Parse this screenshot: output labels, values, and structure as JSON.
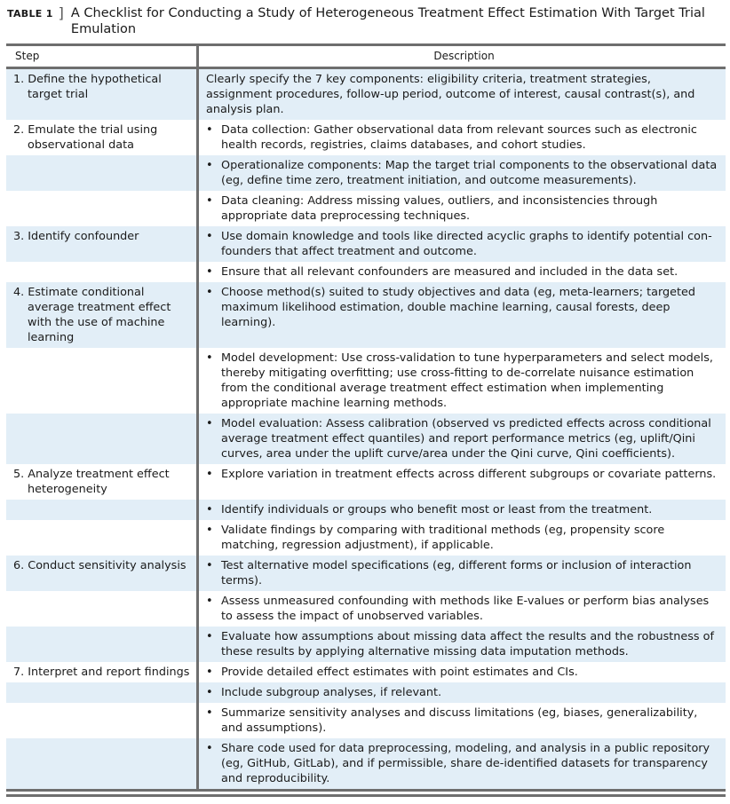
{
  "caption": {
    "label": "TABLE 1",
    "bracket": "]",
    "title": "A Checklist for Conducting a Study of Heterogeneous Treatment Effect Estimation With Target Trial Emulation"
  },
  "headers": {
    "step": "Step",
    "description": "Description"
  },
  "shade_color": "#e2eef7",
  "rows": [
    {
      "step": "1. Define the hypothetical target trial",
      "text": "Clearly specify the 7 key components: eligibility criteria, treatment strategies, assignment procedures, follow-up period, outcome of interest, causal contrast(s), and analysis plan.",
      "bullet": false
    },
    {
      "step": "2. Emulate the trial using observational data",
      "text": "Data collection: Gather observational data from relevant sources such as electronic health records, registries, claims databases, and cohort studies.",
      "bullet": true
    },
    {
      "step": "",
      "text": "Operationalize components: Map the target trial components to the observational data (eg, define time zero, treatment initiation, and outcome measurements).",
      "bullet": true
    },
    {
      "step": "",
      "text": "Data cleaning: Address missing values, outliers, and inconsistencies through appropriate data preprocessing techniques.",
      "bullet": true
    },
    {
      "step": "3. Identify confounder",
      "text": "Use domain knowledge and tools like directed acyclic graphs to identify potential con-founders that affect treatment and outcome.",
      "bullet": true
    },
    {
      "step": "",
      "text": "Ensure that all relevant confounders are measured and included in the data set.",
      "bullet": true
    },
    {
      "step": "4. Estimate conditional average treatment effect with the use of machine learning",
      "text": "Choose method(s) suited to study objectives and data (eg, meta-learners; targeted maximum likelihood estimation, double machine learning, causal forests, deep learning).",
      "bullet": true
    },
    {
      "step": "",
      "text": "Model development: Use cross-validation to tune hyperparameters and select models, thereby mitigating overfitting; use cross-fitting to de-correlate nuisance estimation from the conditional average treatment effect estimation when implementing appropriate machine learning methods.",
      "bullet": true
    },
    {
      "step": "",
      "text": "Model evaluation: Assess calibration (observed vs predicted effects across conditional average treatment effect quantiles) and report performance metrics (eg, uplift/Qini curves, area under the uplift curve/area under the Qini curve, Qini coefficients).",
      "bullet": true
    },
    {
      "step": "5. Analyze treatment effect heterogeneity",
      "text": "Explore variation in treatment effects across different subgroups or covariate patterns.",
      "bullet": true
    },
    {
      "step": "",
      "text": "Identify individuals or groups who benefit most or least from the treatment.",
      "bullet": true
    },
    {
      "step": "",
      "text": "Validate findings by comparing with traditional methods (eg, propensity score matching, regression adjustment), if applicable.",
      "bullet": true
    },
    {
      "step": "6. Conduct sensitivity analysis",
      "text": "Test alternative model specifications (eg, different forms or inclusion of interaction terms).",
      "bullet": true
    },
    {
      "step": "",
      "text": "Assess unmeasured confounding with methods like E-values or perform bias analyses to assess the impact of unobserved variables.",
      "bullet": true
    },
    {
      "step": "",
      "text": "Evaluate how assumptions about missing data affect the results and the robustness of these results by applying alternative missing data imputation methods.",
      "bullet": true
    },
    {
      "step": "7. Interpret and report findings",
      "text": "Provide detailed effect estimates with point estimates and CIs.",
      "bullet": true
    },
    {
      "step": "",
      "text": "Include subgroup analyses, if relevant.",
      "bullet": true
    },
    {
      "step": "",
      "text": "Summarize sensitivity analyses and discuss limitations (eg, biases, generalizability, and assumptions).",
      "bullet": true
    },
    {
      "step": "",
      "text": "Share code used for data preprocessing, modeling, and analysis in a public repository (eg, GitHub, GitLab), and if permissible, share de-identified datasets for transparency and reproducibility.",
      "bullet": true
    }
  ]
}
